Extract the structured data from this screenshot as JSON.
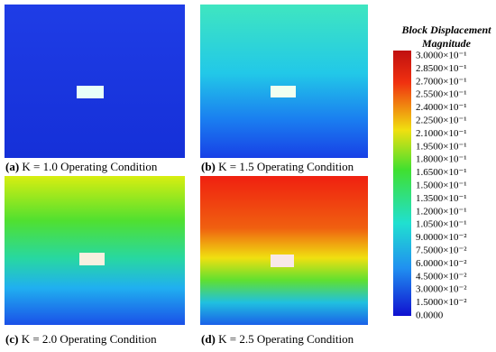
{
  "panels": [
    {
      "label": "(a)",
      "caption": "K = 1.0 Operating Condition"
    },
    {
      "label": "(b)",
      "caption": "K = 1.5 Operating Condition"
    },
    {
      "label": "(c)",
      "caption": "K = 2.0 Operating Condition"
    },
    {
      "label": "(d)",
      "caption": "K = 2.5 Operating Condition"
    }
  ],
  "colorbar": {
    "title": [
      "Block Displacement",
      "Magnitude"
    ],
    "labels": [
      "3.0000×10⁻¹",
      "2.8500×10⁻¹",
      "2.7000×10⁻¹",
      "2.5500×10⁻¹",
      "2.4000×10⁻¹",
      "2.2500×10⁻¹",
      "2.1000×10⁻¹",
      "1.9500×10⁻¹",
      "1.8000×10⁻¹",
      "1.6500×10⁻¹",
      "1.5000×10⁻¹",
      "1.3500×10⁻¹",
      "1.2000×10⁻¹",
      "1.0500×10⁻¹",
      "9.0000×10⁻²",
      "7.5000×10⁻²",
      "6.0000×10⁻²",
      "4.5000×10⁻²",
      "3.0000×10⁻²",
      "1.5000×10⁻²",
      "0.0000"
    ]
  }
}
